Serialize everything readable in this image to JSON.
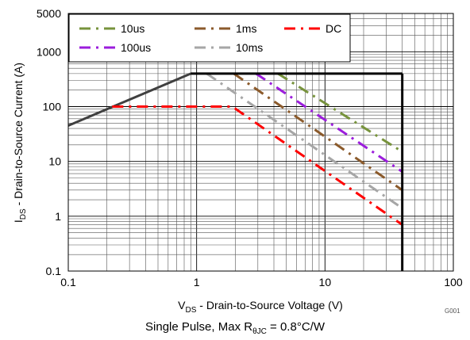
{
  "figure_id": "G001",
  "subtitle": {
    "prefix": "Single Pulse, Max R",
    "sub": "θJC",
    "suffix": " = 0.8°C/W"
  },
  "colors": {
    "10us": "#77933c",
    "100us": "#9b1ddc",
    "1ms": "#8b5a2b",
    "10ms": "#a6a6a6",
    "DC": "#ff0000",
    "boundary": "#000000",
    "limit_line": "#404040"
  },
  "chart_data": {
    "type": "line",
    "xscale": "log",
    "yscale": "log",
    "xlim": [
      0.1,
      100
    ],
    "ylim": [
      0.1,
      5000
    ],
    "grid": true,
    "xlabel": {
      "main": "V",
      "sub": "DS",
      "rest": " - Drain-to-Source Voltage (V)"
    },
    "ylabel": {
      "main": "I",
      "sub": "DS",
      "rest": " - Drain-to-Source Current (A)"
    },
    "xticks": [
      {
        "value": 0.1,
        "label": "0.1"
      },
      {
        "value": 1,
        "label": "1"
      },
      {
        "value": 10,
        "label": "10"
      },
      {
        "value": 100,
        "label": "100"
      }
    ],
    "yticks": [
      {
        "value": 0.1,
        "label": "0.1"
      },
      {
        "value": 1,
        "label": "1"
      },
      {
        "value": 10,
        "label": "10"
      },
      {
        "value": 100,
        "label": "100"
      },
      {
        "value": 1000,
        "label": "1000"
      },
      {
        "value": 5000,
        "label": "5000"
      }
    ],
    "legend": {
      "position": "top",
      "entries": [
        {
          "label": "10us",
          "color_key": "10us"
        },
        {
          "label": "1ms",
          "color_key": "1ms"
        },
        {
          "label": "DC",
          "color_key": "DC"
        },
        {
          "label": "100us",
          "color_key": "100us"
        },
        {
          "label": "10ms",
          "color_key": "10ms"
        }
      ]
    },
    "boundaries": [
      {
        "name": "Vds max",
        "x": [
          40,
          40
        ],
        "y": [
          0.1,
          400
        ]
      },
      {
        "name": "Id max",
        "x": [
          0.9,
          40
        ],
        "y": [
          400,
          400
        ]
      }
    ],
    "rdson_limit": {
      "x": [
        0.1,
        0.9
      ],
      "y": [
        45,
        400
      ]
    },
    "series": [
      {
        "name": "10us",
        "color_key": "10us",
        "style": "dash-dot",
        "x": [
          4.3,
          40
        ],
        "y": [
          400,
          15
        ]
      },
      {
        "name": "100us",
        "color_key": "100us",
        "style": "dash-dot",
        "x": [
          2.9,
          40
        ],
        "y": [
          400,
          6.5
        ]
      },
      {
        "name": "1ms",
        "color_key": "1ms",
        "style": "dash-dot",
        "x": [
          1.95,
          40
        ],
        "y": [
          400,
          3.0
        ]
      },
      {
        "name": "10ms",
        "color_key": "10ms",
        "style": "dash-dot",
        "x": [
          1.2,
          40
        ],
        "y": [
          400,
          1.4
        ]
      },
      {
        "name": "DC",
        "color_key": "DC",
        "style": "dash-dot",
        "x": [
          0.22,
          1.9,
          40
        ],
        "y": [
          100,
          100,
          0.7
        ]
      }
    ]
  }
}
